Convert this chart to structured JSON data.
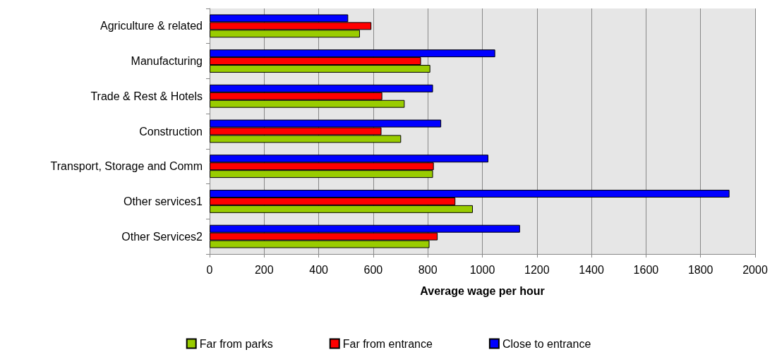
{
  "chart_data": {
    "type": "bar",
    "orientation": "horizontal",
    "xlabel": "Average wage per hour",
    "categories": [
      "Agriculture & related",
      "Manufacturing",
      "Trade & Rest & Hotels",
      "Construction",
      "Transport, Storage and Comm",
      "Other services1",
      "Other Services2"
    ],
    "series": [
      {
        "name": "Far from parks",
        "color": "#99cc00",
        "values": [
          551,
          809,
          715,
          702,
          819,
          965,
          806
        ]
      },
      {
        "name": "Far from entrance",
        "color": "#ff0000",
        "values": [
          593,
          775,
          633,
          630,
          822,
          901,
          836
        ]
      },
      {
        "name": "Close to entrance",
        "color": "#0000ff",
        "values": [
          508,
          1047,
          819,
          849,
          1022,
          1906,
          1138
        ]
      }
    ],
    "xlim": [
      0,
      2000
    ],
    "xticks": [
      0,
      200,
      400,
      600,
      800,
      1000,
      1200,
      1400,
      1600,
      1800,
      2000
    ],
    "grid": "x",
    "legend": "bottom"
  }
}
